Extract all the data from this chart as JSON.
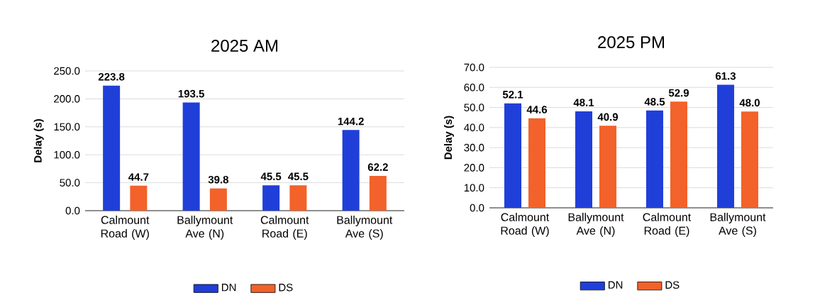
{
  "chart_data": [
    {
      "type": "bar",
      "title": "2025 AM",
      "ylabel": "Delay (s)",
      "categories": [
        "Calmount Road (W)",
        "Ballymount Ave (N)",
        "Calmount Road (E)",
        "Ballymount Ave (S)"
      ],
      "series": [
        {
          "name": "DN",
          "color": "#1f3fd8",
          "values": [
            223.8,
            193.5,
            45.5,
            144.2
          ],
          "value_labels": [
            "223.8",
            "193.5",
            "45.5",
            "144.2"
          ]
        },
        {
          "name": "DS",
          "color": "#f2622a",
          "values": [
            44.7,
            39.8,
            45.5,
            62.2
          ],
          "value_labels": [
            "44.7",
            "39.8",
            "45.5",
            "62.2"
          ]
        }
      ],
      "ylim": [
        0,
        250
      ],
      "yticks": [
        {
          "value": 0,
          "label": "0.0"
        },
        {
          "value": 50,
          "label": "50.0"
        },
        {
          "value": 100,
          "label": "100.0"
        },
        {
          "value": 150,
          "label": "150.0"
        },
        {
          "value": 200,
          "label": "200.0"
        },
        {
          "value": 250,
          "label": "250.0"
        }
      ],
      "grid": "y",
      "legend": "bottom"
    },
    {
      "type": "bar",
      "title": "2025 PM",
      "ylabel": "Delay (s)",
      "categories": [
        "Calmount Road (W)",
        "Ballymount Ave (N)",
        "Calmount Road (E)",
        "Ballymount Ave (S)"
      ],
      "series": [
        {
          "name": "DN",
          "color": "#1f3fd8",
          "values": [
            52.1,
            48.1,
            48.5,
            61.3
          ],
          "value_labels": [
            "52.1",
            "48.1",
            "48.5",
            "61.3"
          ]
        },
        {
          "name": "DS",
          "color": "#f2622a",
          "values": [
            44.6,
            40.9,
            52.9,
            48.0
          ],
          "value_labels": [
            "44.6",
            "40.9",
            "52.9",
            "48.0"
          ]
        }
      ],
      "ylim": [
        0,
        70
      ],
      "yticks": [
        {
          "value": 0,
          "label": "0.0"
        },
        {
          "value": 10,
          "label": "10.0"
        },
        {
          "value": 20,
          "label": "20.0"
        },
        {
          "value": 30,
          "label": "30.0"
        },
        {
          "value": 40,
          "label": "40.0"
        },
        {
          "value": 50,
          "label": "50.0"
        },
        {
          "value": 60,
          "label": "60.0"
        },
        {
          "value": 70,
          "label": "70.0"
        }
      ],
      "grid": "y",
      "legend": "bottom"
    }
  ]
}
